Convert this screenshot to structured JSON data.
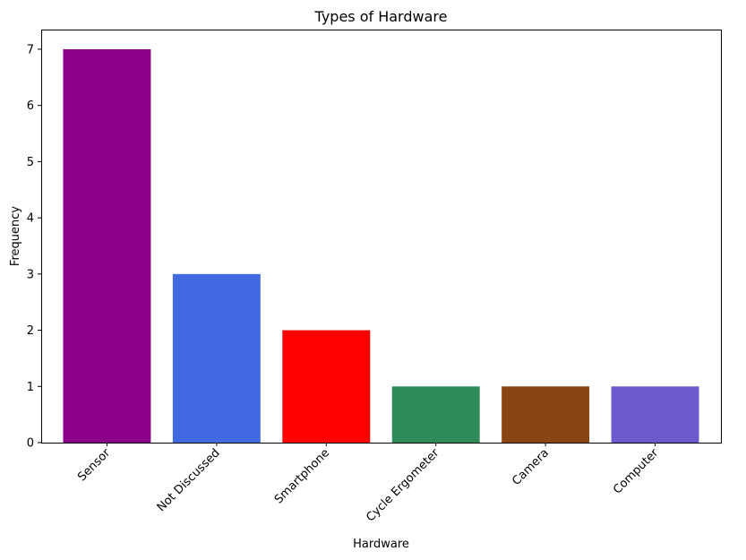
{
  "chart_data": {
    "type": "bar",
    "title": "Types of Hardware",
    "xlabel": "Hardware",
    "ylabel": "Frequency",
    "categories": [
      "Sensor",
      "Not Discussed",
      "Smartphone",
      "Cycle Ergometer",
      "Camera",
      "Computer"
    ],
    "values": [
      7,
      3,
      2,
      1,
      1,
      1
    ],
    "colors": [
      "#8b008b",
      "#4169e1",
      "#ff0000",
      "#2e8b57",
      "#8b4513",
      "#6a5acd"
    ],
    "ylim": [
      0,
      7.35
    ],
    "yticks": [
      0,
      1,
      2,
      3,
      4,
      5,
      6,
      7
    ],
    "grid": false,
    "xtick_rotation": 45
  }
}
